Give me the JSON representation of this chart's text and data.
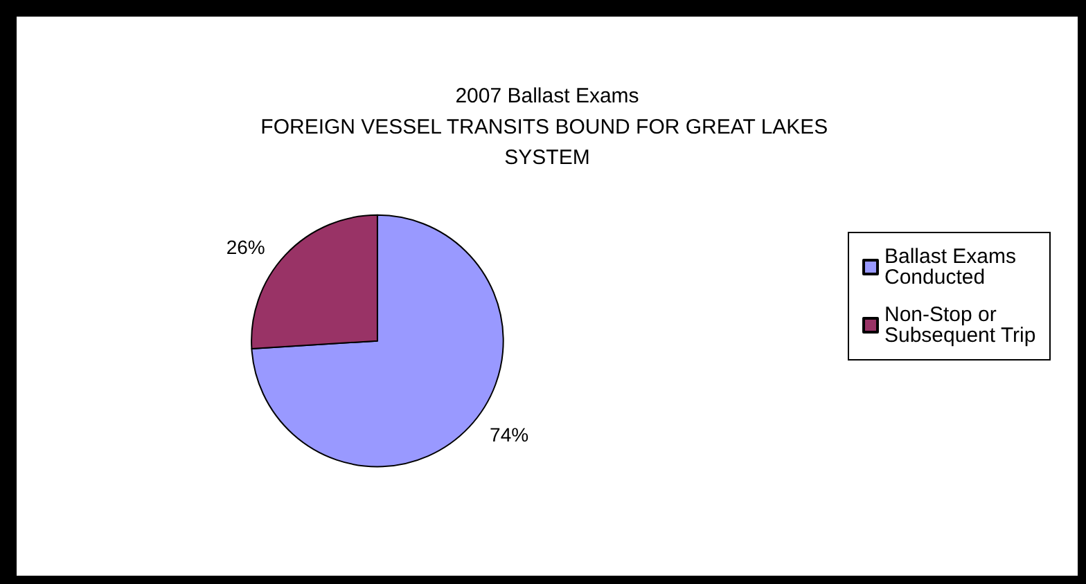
{
  "chart_data": {
    "type": "pie",
    "title": "2007 Ballast Exams",
    "subtitle": "FOREIGN VESSEL TRANSITS BOUND FOR GREAT LAKES SYSTEM",
    "categories": [
      "Ballast Exams Conducted",
      "Non-Stop or Subsequent Trip"
    ],
    "values": [
      74,
      26
    ],
    "colors": [
      "#9999ff",
      "#993366"
    ],
    "value_labels": [
      "74%",
      "26%"
    ],
    "legend": "right"
  }
}
